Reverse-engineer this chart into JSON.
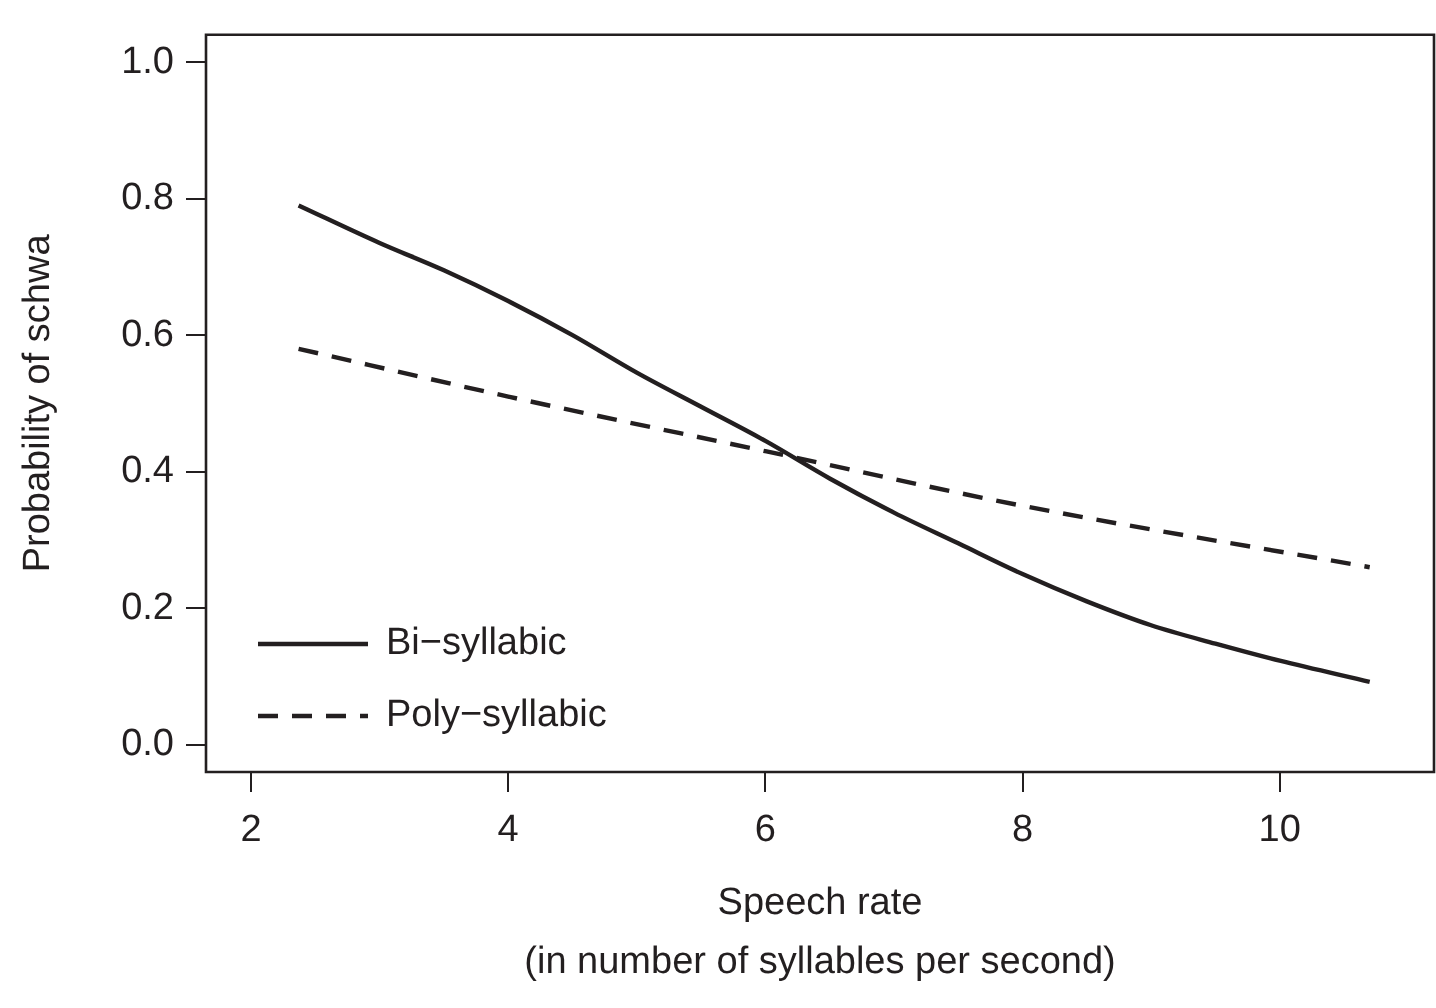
{
  "chart_data": {
    "type": "line",
    "xlabel": "Speech rate\n(in number of syllables per second)",
    "ylabel": "Probability of schwa",
    "xlim": [
      1.65,
      11.2
    ],
    "ylim": [
      -0.04,
      1.04
    ],
    "xticks": [
      2,
      4,
      6,
      8,
      10
    ],
    "yticks": [
      {
        "value": 0,
        "label": "0.0"
      },
      {
        "value": 0.2,
        "label": "0.2"
      },
      {
        "value": 0.4,
        "label": "0.4"
      },
      {
        "value": 0.6,
        "label": "0.6"
      },
      {
        "value": 0.8,
        "label": "0.8"
      },
      {
        "value": 1,
        "label": "1.0"
      }
    ],
    "grid": false,
    "legend": "bottom left",
    "marker": "none",
    "series": [
      {
        "name": "Bi−syllabic",
        "color": "#231f20",
        "line_style": "solid",
        "x": [
          2.37,
          3,
          3.5,
          4,
          4.5,
          5,
          5.5,
          6,
          6.5,
          7,
          7.5,
          8,
          8.5,
          9,
          9.5,
          10,
          10.7
        ],
        "values": [
          0.79,
          0.735,
          0.695,
          0.65,
          0.6,
          0.545,
          0.495,
          0.445,
          0.39,
          0.34,
          0.295,
          0.25,
          0.21,
          0.175,
          0.148,
          0.123,
          0.092
        ]
      },
      {
        "name": "Poly−syllabic",
        "color": "#231f20",
        "line_style": "dashed",
        "x": [
          2.37,
          4,
          6,
          8,
          10.7
        ],
        "values": [
          0.58,
          0.51,
          0.43,
          0.35,
          0.26
        ]
      }
    ]
  }
}
